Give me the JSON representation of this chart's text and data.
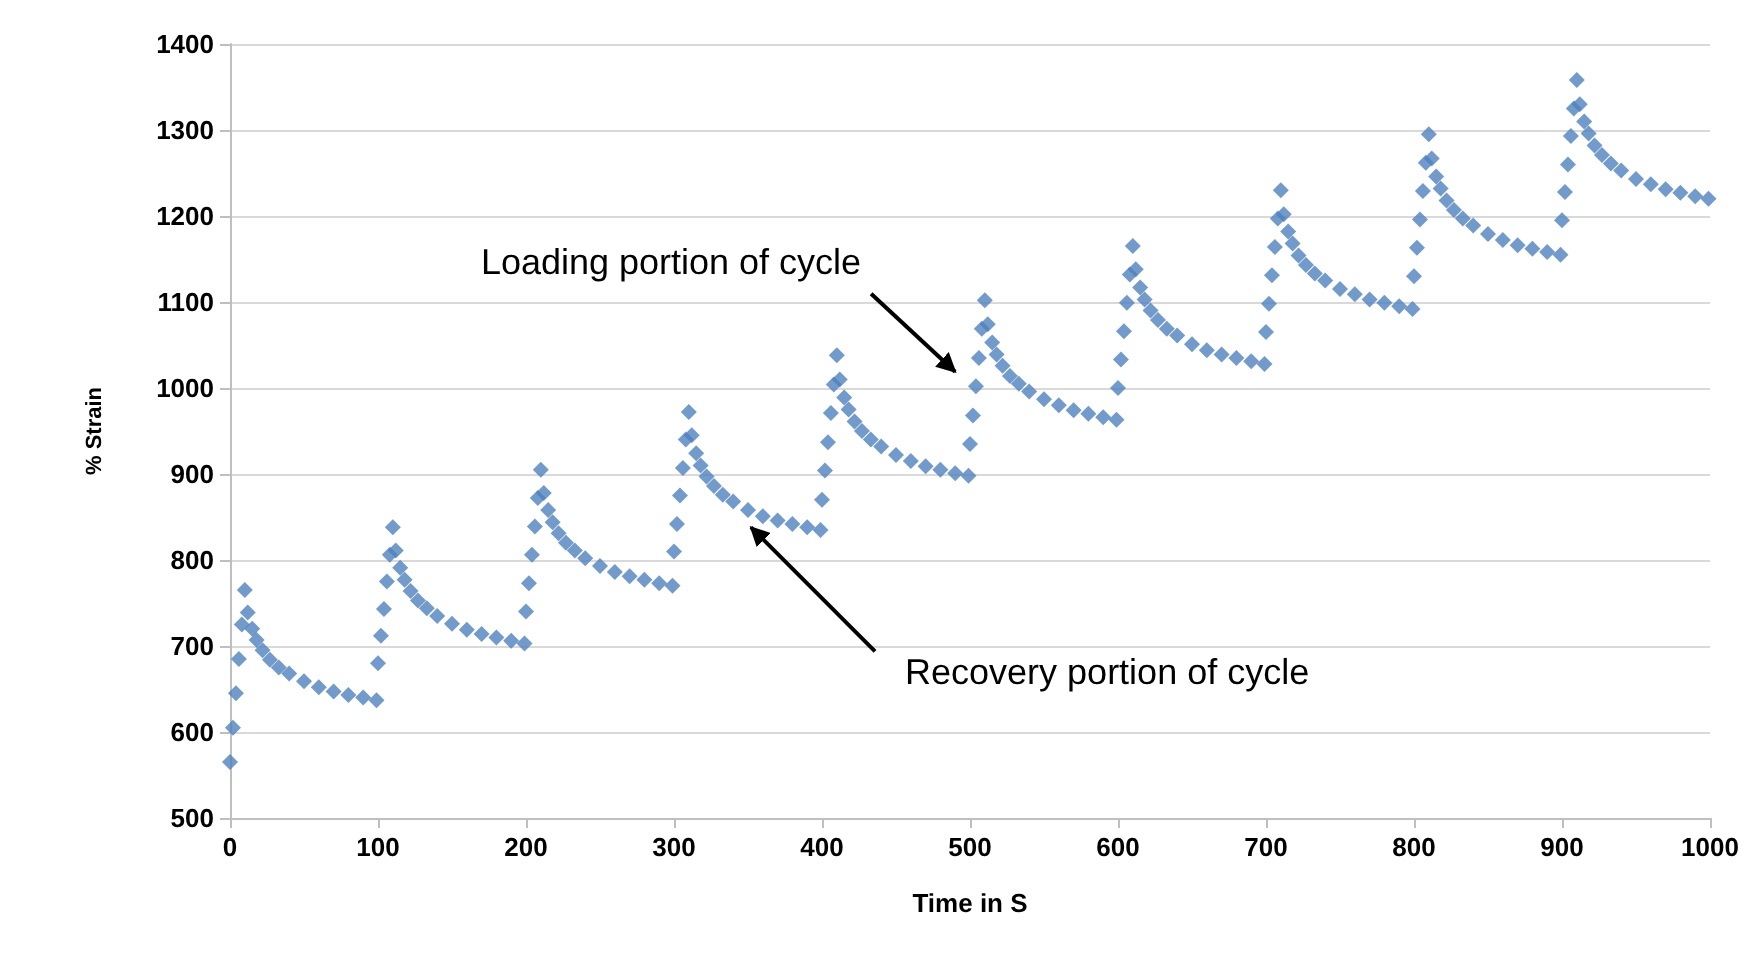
{
  "chart_data": {
    "type": "scatter",
    "xlabel": "Time in S",
    "ylabel": "% Strain",
    "xlim": [
      0,
      1000
    ],
    "xticks": [
      0,
      100,
      200,
      300,
      400,
      500,
      600,
      700,
      800,
      900,
      1000
    ],
    "ylim": [
      500,
      1400
    ],
    "yticks": [
      500,
      600,
      700,
      800,
      900,
      1000,
      1100,
      1200,
      1300,
      1400
    ],
    "grid": "y",
    "marker": "diamond",
    "annotations": [
      {
        "text": "Loading portion of cycle",
        "x": 494,
        "y": 1012
      },
      {
        "text": "Recovery portion of cycle",
        "x": 348,
        "y": 845
      }
    ],
    "series": [
      {
        "color": "#4f81bd",
        "x": [
          0,
          2,
          4,
          6,
          8,
          10,
          12,
          15,
          18,
          22,
          27,
          33,
          40,
          50,
          60,
          70,
          80,
          90,
          99,
          100,
          102,
          104,
          106,
          108,
          110,
          112,
          115,
          118,
          122,
          127,
          133,
          140,
          150,
          160,
          170,
          180,
          190,
          199,
          200,
          202,
          204,
          206,
          208,
          210,
          212,
          215,
          218,
          222,
          227,
          233,
          240,
          250,
          260,
          270,
          280,
          290,
          299,
          300,
          302,
          304,
          306,
          308,
          310,
          312,
          315,
          318,
          322,
          327,
          333,
          340,
          350,
          360,
          370,
          380,
          390,
          399,
          400,
          402,
          404,
          406,
          408,
          410,
          412,
          415,
          418,
          422,
          427,
          433,
          440,
          450,
          460,
          470,
          480,
          490,
          499,
          500,
          502,
          504,
          506,
          508,
          510,
          512,
          515,
          518,
          522,
          527,
          533,
          540,
          550,
          560,
          570,
          580,
          590,
          599,
          600,
          602,
          604,
          606,
          608,
          610,
          612,
          615,
          618,
          622,
          627,
          633,
          640,
          650,
          660,
          670,
          680,
          690,
          699,
          700,
          702,
          704,
          706,
          708,
          710,
          712,
          715,
          718,
          722,
          727,
          733,
          740,
          750,
          760,
          770,
          780,
          790,
          799,
          800,
          802,
          804,
          806,
          808,
          810,
          812,
          815,
          818,
          822,
          827,
          833,
          840,
          850,
          860,
          870,
          880,
          890,
          899,
          900,
          902,
          904,
          906,
          908,
          910,
          912,
          915,
          918,
          922,
          927,
          933,
          940,
          950,
          960,
          970,
          980,
          990,
          999
        ],
        "values": [
          565,
          605,
          645,
          685,
          725,
          765,
          739,
          720,
          707,
          695,
          684,
          675,
          668,
          659,
          652,
          647,
          643,
          640,
          637,
          680,
          712,
          743,
          775,
          806,
          838,
          811,
          791,
          777,
          764,
          753,
          744,
          735,
          726,
          719,
          714,
          710,
          706,
          703,
          740,
          773,
          806,
          839,
          872,
          905,
          878,
          858,
          844,
          831,
          820,
          811,
          802,
          793,
          786,
          781,
          777,
          773,
          770,
          810,
          842,
          875,
          907,
          940,
          972,
          945,
          924,
          910,
          897,
          886,
          876,
          868,
          858,
          851,
          846,
          842,
          838,
          835,
          870,
          904,
          937,
          971,
          1004,
          1038,
          1010,
          989,
          975,
          961,
          950,
          940,
          932,
          922,
          915,
          909,
          905,
          901,
          898,
          935,
          968,
          1002,
          1035,
          1069,
          1102,
          1074,
          1053,
          1039,
          1026,
          1014,
          1005,
          996,
          987,
          980,
          974,
          970,
          966,
          963,
          1000,
          1033,
          1066,
          1099,
          1132,
          1165,
          1138,
          1117,
          1103,
          1090,
          1079,
          1069,
          1061,
          1051,
          1044,
          1039,
          1035,
          1031,
          1028,
          1065,
          1098,
          1131,
          1164,
          1197,
          1230,
          1202,
          1182,
          1168,
          1154,
          1143,
          1133,
          1125,
          1115,
          1109,
          1103,
          1099,
          1095,
          1092,
          1130,
          1163,
          1196,
          1229,
          1262,
          1295,
          1267,
          1246,
          1232,
          1218,
          1207,
          1197,
          1189,
          1179,
          1172,
          1166,
          1162,
          1158,
          1155,
          1195,
          1228,
          1260,
          1293,
          1325,
          1358,
          1330,
          1310,
          1296,
          1282,
          1271,
          1261,
          1253,
          1243,
          1237,
          1231,
          1227,
          1223,
          1220
        ]
      }
    ]
  }
}
